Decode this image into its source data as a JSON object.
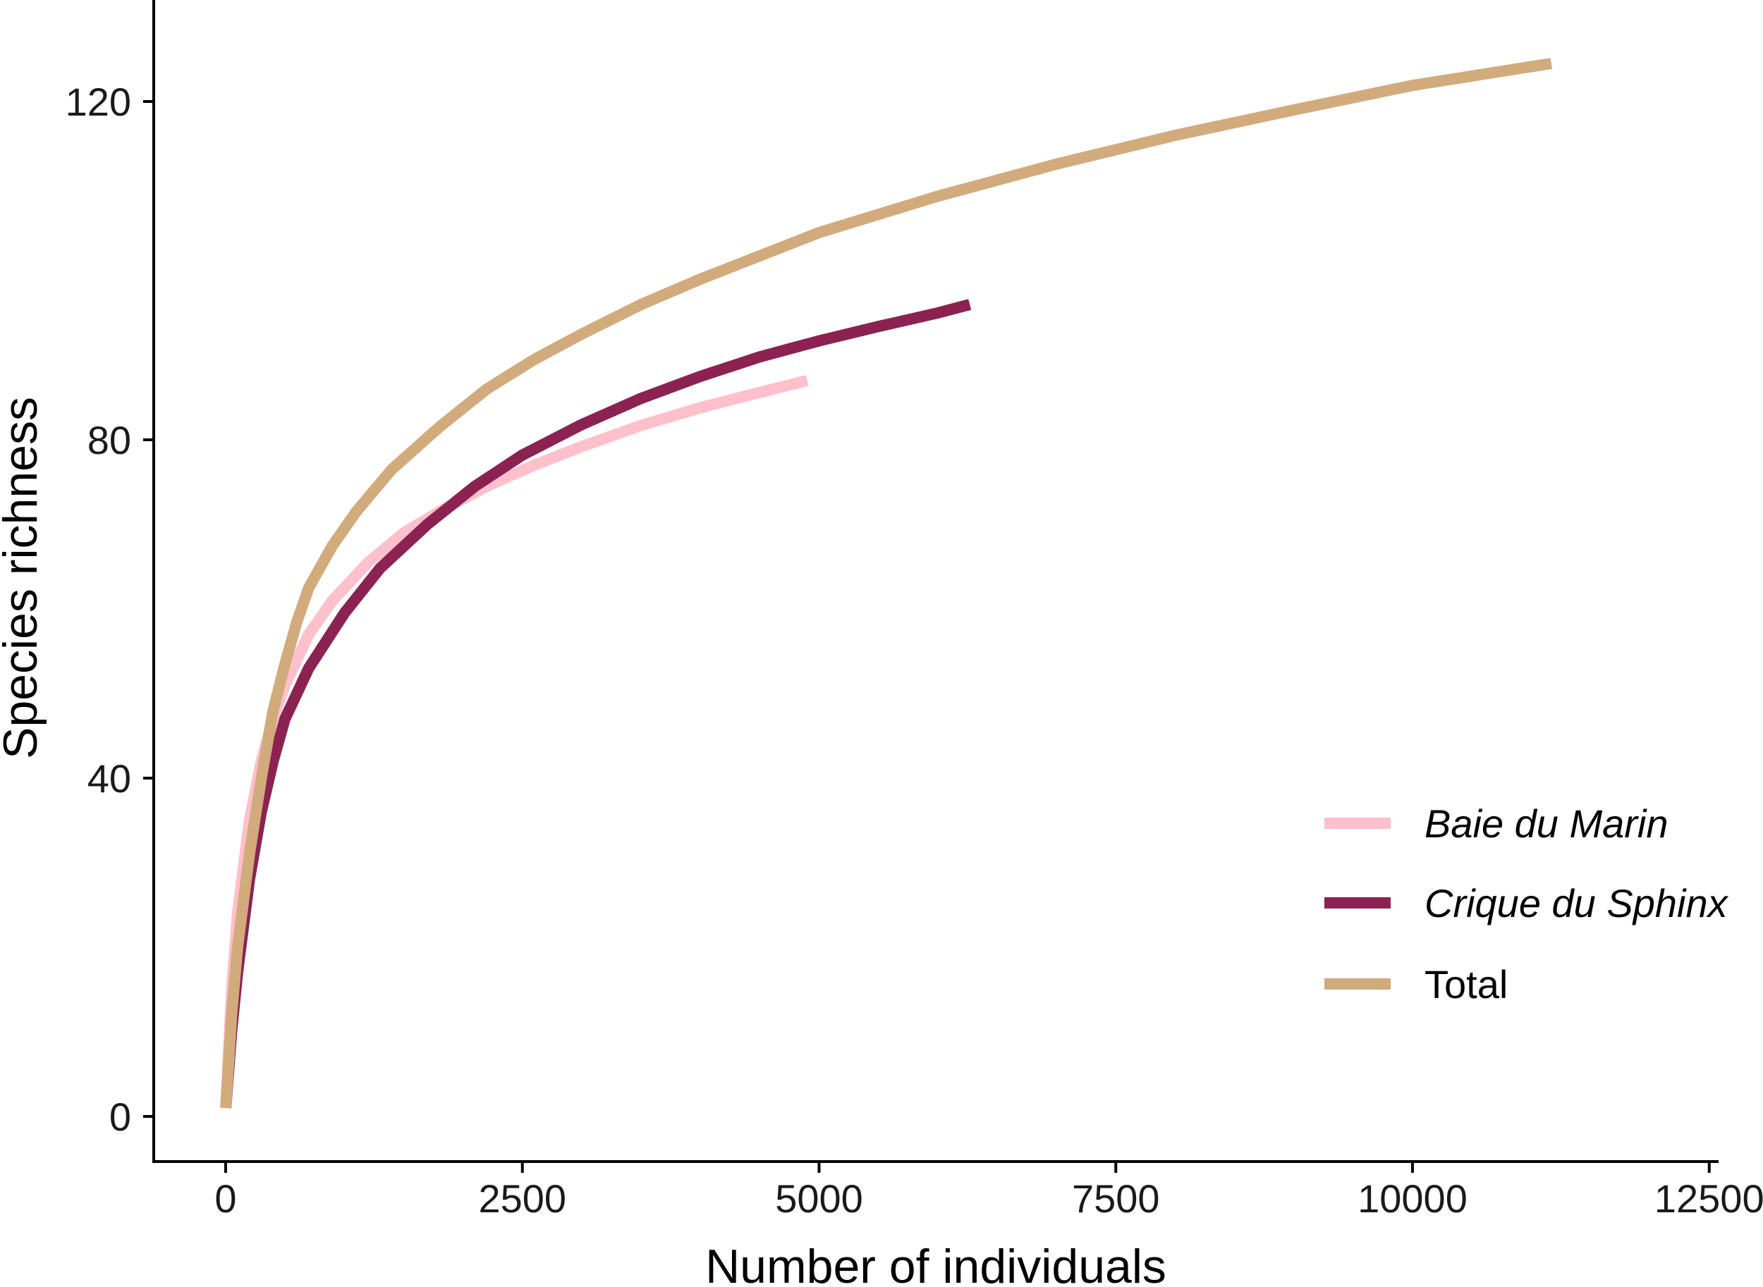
{
  "chart_data": {
    "type": "line",
    "title": "",
    "xlabel": "Number of individuals",
    "ylabel": "Species richness",
    "xlim": [
      -300,
      12500
    ],
    "ylim": [
      -5,
      132
    ],
    "x_ticks": [
      0,
      2500,
      5000,
      7500,
      10000,
      12500
    ],
    "y_ticks": [
      0,
      40,
      80,
      120
    ],
    "grid": false,
    "legend_position": "bottom-right",
    "series": [
      {
        "name": "Baie du Marin",
        "italic": true,
        "color": "#FFC0CB",
        "x": [
          1,
          50,
          100,
          200,
          300,
          400,
          500,
          700,
          900,
          1200,
          1500,
          1800,
          2200,
          2600,
          3000,
          3500,
          4000,
          4500,
          4900
        ],
        "y": [
          1,
          15,
          24,
          35,
          42,
          47,
          51,
          57,
          61,
          65.5,
          69,
          71.5,
          74.5,
          77,
          79.2,
          81.7,
          83.8,
          85.6,
          87
        ]
      },
      {
        "name": "Crique du Sphinx",
        "italic": true,
        "color": "#8B2252",
        "x": [
          1,
          50,
          100,
          200,
          300,
          400,
          500,
          700,
          1000,
          1300,
          1700,
          2100,
          2500,
          3000,
          3500,
          4000,
          4500,
          5000,
          5500,
          6000,
          6270
        ],
        "y": [
          1,
          10,
          17,
          28,
          36,
          42,
          47,
          53,
          59.5,
          64.8,
          70,
          74.5,
          78.2,
          81.8,
          84.9,
          87.5,
          89.8,
          91.7,
          93.4,
          95,
          96
        ]
      },
      {
        "name": "Total",
        "italic": false,
        "color": "#D2AB7D",
        "x": [
          1,
          50,
          100,
          200,
          300,
          400,
          500,
          600,
          700,
          900,
          1100,
          1400,
          1800,
          2200,
          2600,
          3000,
          3500,
          4000,
          5000,
          6000,
          7000,
          8000,
          9000,
          10000,
          11170
        ],
        "y": [
          1,
          12,
          20,
          31,
          40,
          48,
          53.5,
          58.5,
          62.5,
          67.5,
          71.5,
          76.5,
          81.5,
          86,
          89.5,
          92.5,
          96,
          99,
          104.5,
          108.8,
          112.6,
          116,
          119,
          121.9,
          124.5
        ]
      }
    ]
  }
}
